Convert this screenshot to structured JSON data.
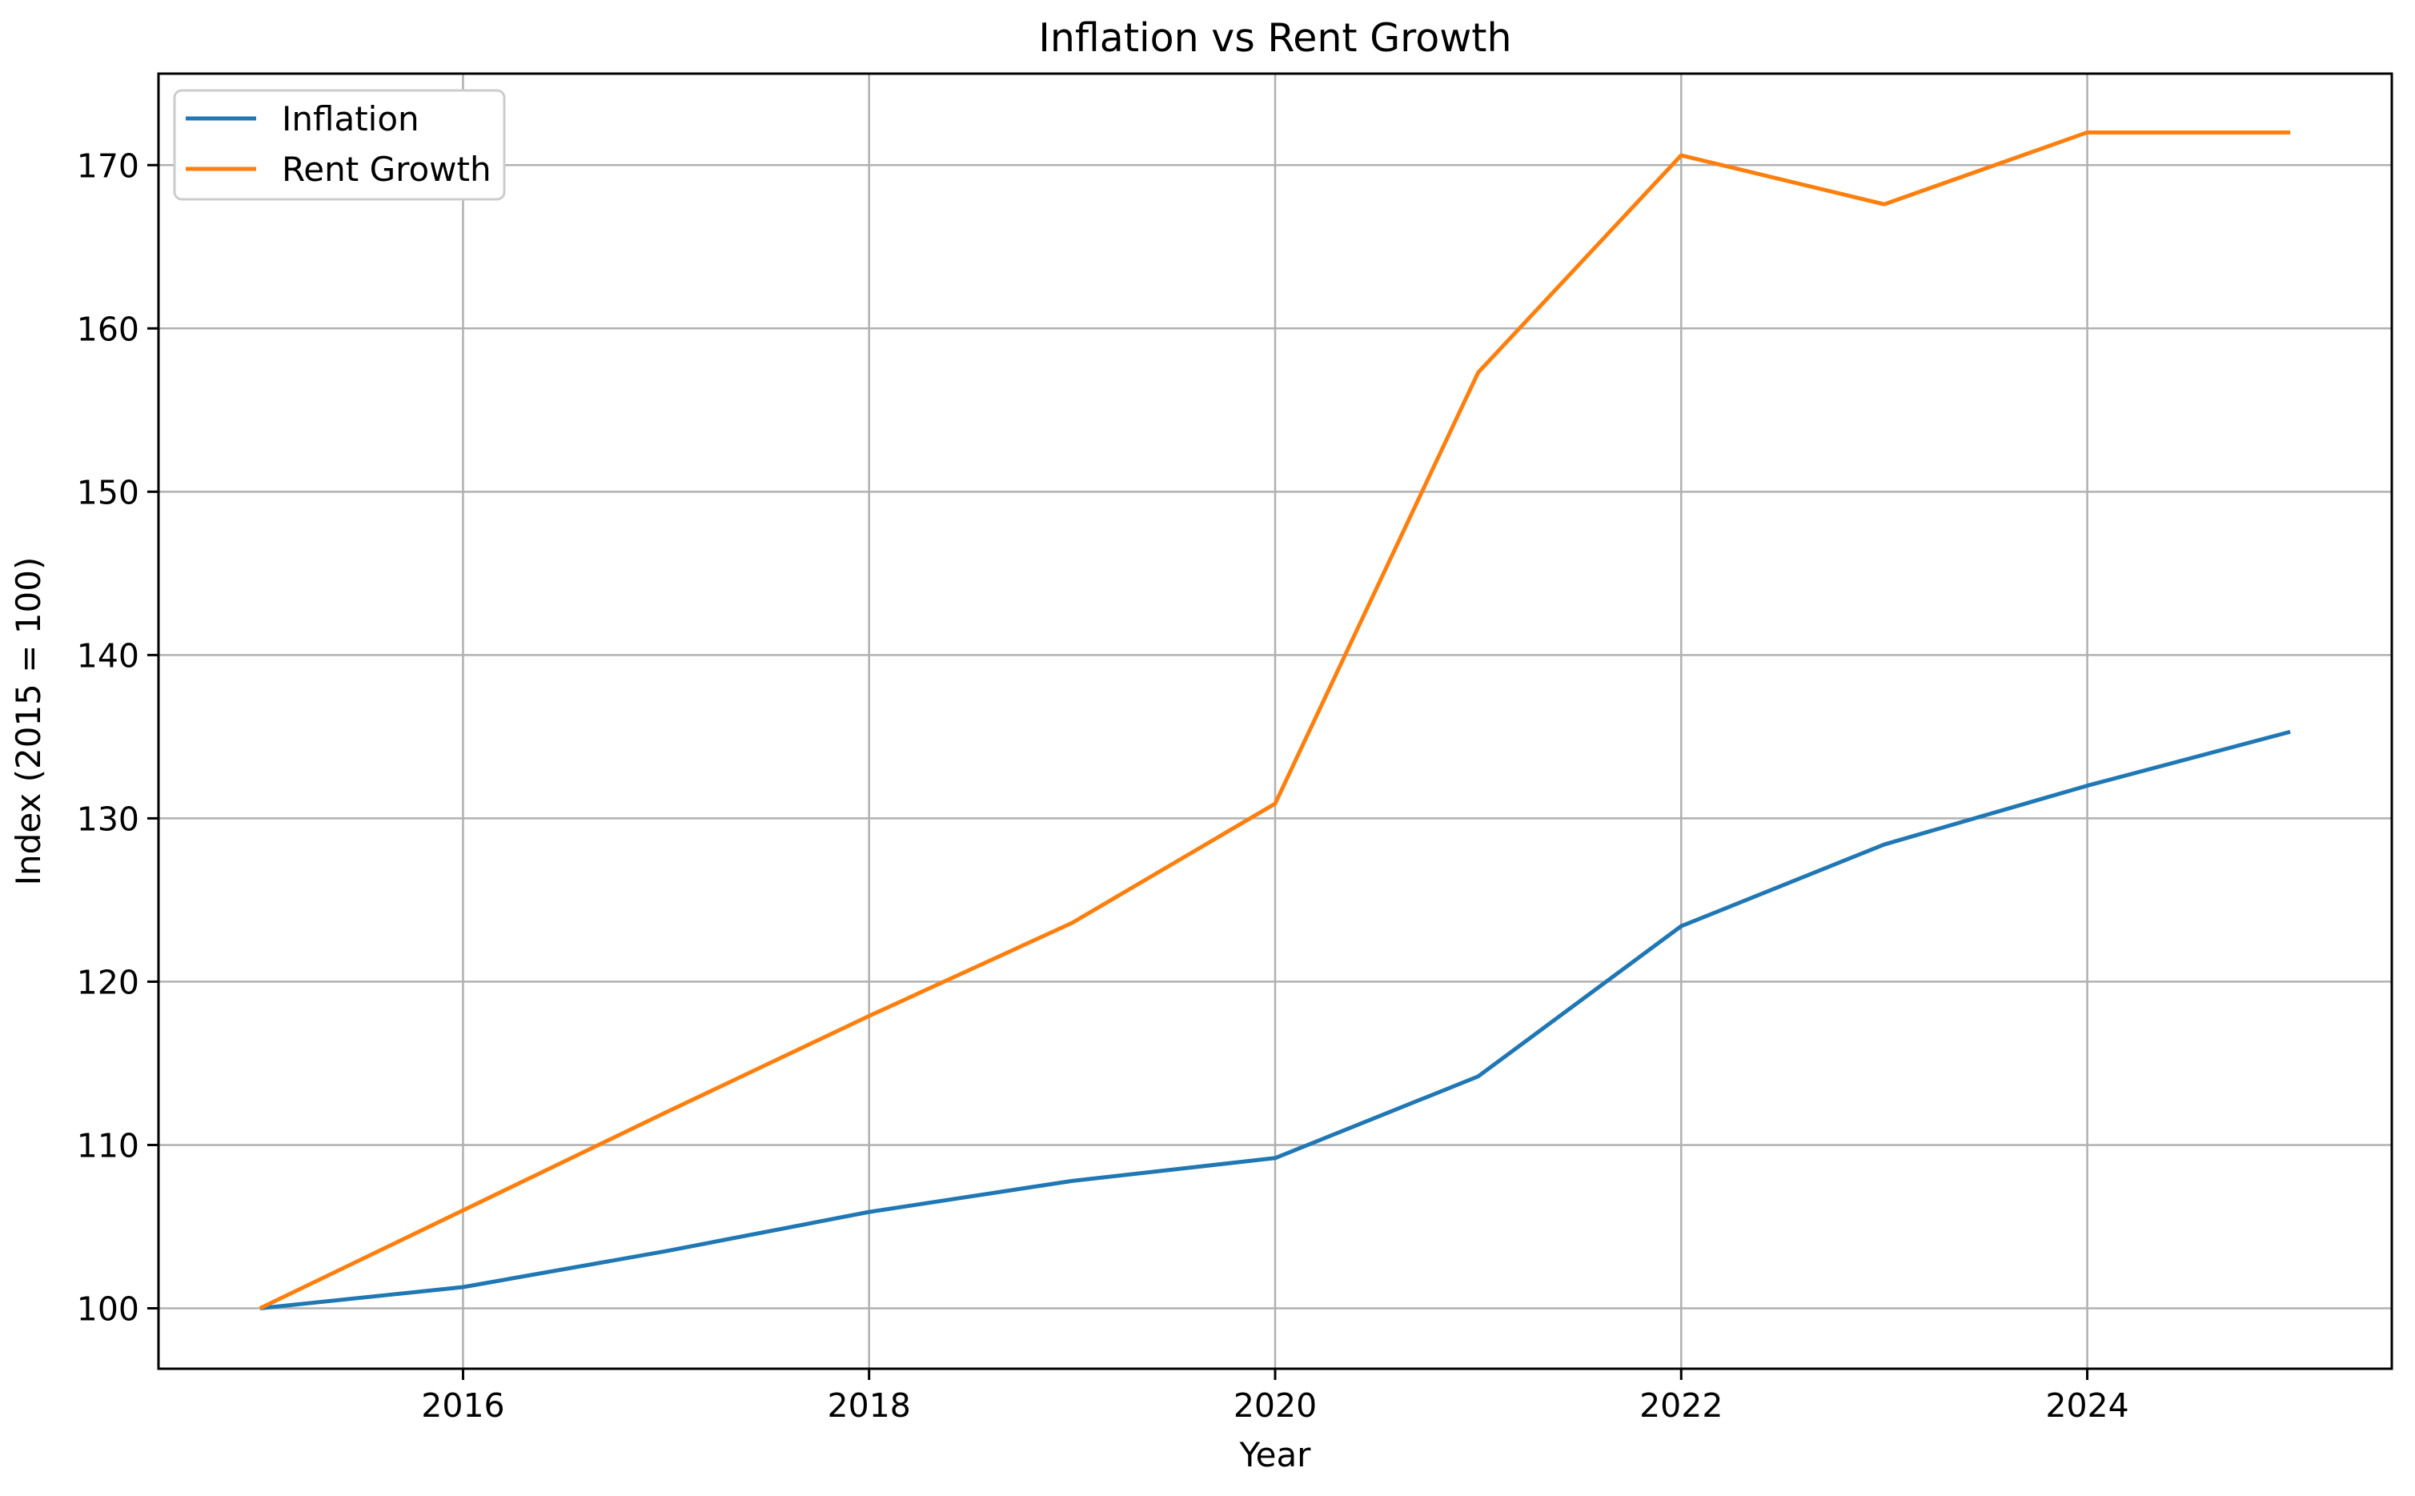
{
  "chart_data": {
    "type": "line",
    "title": "Inflation vs Rent Growth",
    "xlabel": "Year",
    "ylabel": "Index (2015 = 100)",
    "x": [
      2015,
      2016,
      2017,
      2018,
      2019,
      2020,
      2021,
      2022,
      2023,
      2024,
      2025
    ],
    "series": [
      {
        "name": "Inflation",
        "color": "#1f77b4",
        "values": [
          100,
          101.3,
          103.5,
          105.9,
          107.8,
          109.2,
          114.2,
          123.4,
          128.4,
          132.0,
          135.3
        ]
      },
      {
        "name": "Rent Growth",
        "color": "#ff7f0e",
        "values": [
          100,
          106.0,
          112.0,
          117.9,
          123.6,
          130.9,
          157.3,
          170.6,
          167.6,
          172.0,
          172.0
        ]
      }
    ],
    "xticks": [
      2016,
      2018,
      2020,
      2022,
      2024
    ],
    "yticks": [
      100,
      110,
      120,
      130,
      140,
      150,
      160,
      170
    ],
    "xlim": [
      2014.5,
      2025.5
    ],
    "ylim": [
      96.3,
      175.6
    ],
    "grid": true,
    "grid_color": "#b0b0b0",
    "spine_color": "#000000",
    "tick_color": "#000000",
    "background": "#ffffff",
    "legend_position": "upper left"
  }
}
